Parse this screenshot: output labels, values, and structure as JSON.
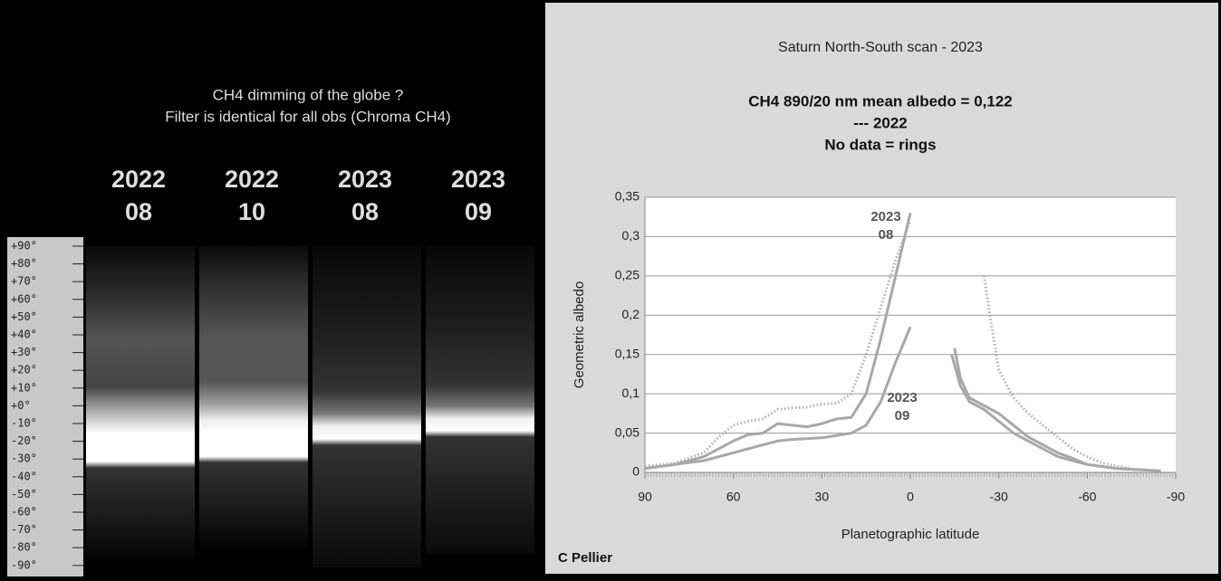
{
  "panel": {
    "title": [
      "CH4 dimming of the globe ?",
      "Filter is identical for all obs (Chroma CH4)"
    ],
    "columns": [
      [
        "2022",
        "08"
      ],
      [
        "2022",
        "10"
      ],
      [
        "2023",
        "08"
      ],
      [
        "2023",
        "09"
      ]
    ],
    "latitude_labels": [
      "+90°",
      "+80°",
      "+70°",
      "+60°",
      "+50°",
      "+40°",
      "+30°",
      "+20°",
      "+10°",
      "+0°",
      "-10°",
      "-20°",
      "-30°",
      "-40°",
      "-50°",
      "-60°",
      "-70°",
      "-80°",
      "-90°"
    ]
  },
  "chart_data": {
    "type": "line",
    "title": "Saturn North-South scan - 2023",
    "subtitle": [
      "CH4 890/20 nm mean albedo = 0,122",
      "--- 2022",
      "No data = rings"
    ],
    "x_label": "Planetographic latitude",
    "y_label": "Geometric albedo",
    "credit": "C Pellier",
    "xlim": [
      90,
      -90
    ],
    "xticks": [
      90,
      60,
      30,
      0,
      -30,
      -60,
      -90
    ],
    "ylim": [
      0,
      0.35
    ],
    "yticks": [
      0,
      {
        "value": 0.05,
        "label": "0,05"
      },
      {
        "value": 0.1,
        "label": "0,1"
      },
      {
        "value": 0.15,
        "label": "0,15"
      },
      {
        "value": 0.2,
        "label": "0,2"
      },
      {
        "value": 0.25,
        "label": "0,25"
      },
      {
        "value": 0.3,
        "label": "0,3"
      },
      {
        "value": 0.35,
        "label": "0,35"
      }
    ],
    "grid": true,
    "annotations": [
      [
        "2023",
        "08"
      ],
      [
        "2023",
        "09"
      ]
    ],
    "series": [
      {
        "color": "#b0b0b0",
        "style": "dotted",
        "x": [
          90,
          80,
          70,
          65,
          60,
          55,
          50,
          45,
          40,
          35,
          30,
          25,
          20,
          15,
          10,
          5,
          0,
          null,
          -25,
          -27,
          -30,
          -35,
          -40,
          -45,
          -50,
          -55,
          -60,
          -65,
          -70,
          -75
        ],
        "values": [
          0.008,
          0.012,
          0.025,
          0.045,
          0.06,
          0.065,
          0.068,
          0.08,
          0.082,
          0.083,
          0.087,
          0.088,
          0.1,
          0.15,
          0.21,
          0.27,
          0.32,
          null,
          0.25,
          0.2,
          0.13,
          0.095,
          0.075,
          0.06,
          0.045,
          0.03,
          0.02,
          0.012,
          0.008,
          0.005
        ]
      },
      {
        "color": "#a8a8a8",
        "style": "solid",
        "x": [
          90,
          80,
          70,
          65,
          60,
          55,
          50,
          45,
          40,
          35,
          30,
          25,
          20,
          15,
          10,
          5,
          0,
          null,
          -15,
          -17,
          -20,
          -25,
          -30,
          -35,
          -40,
          -45,
          -50,
          -55,
          -60,
          -70,
          -80,
          -85
        ],
        "values": [
          0.005,
          0.01,
          0.02,
          0.03,
          0.04,
          0.048,
          0.05,
          0.062,
          0.06,
          0.058,
          0.062,
          0.068,
          0.07,
          0.1,
          0.17,
          0.25,
          0.33,
          null,
          0.158,
          0.12,
          0.095,
          0.085,
          0.075,
          0.06,
          0.045,
          0.035,
          0.025,
          0.018,
          0.01,
          0.005,
          0.003,
          0.002
        ]
      },
      {
        "color": "#a8a8a8",
        "style": "solid",
        "x": [
          90,
          80,
          70,
          60,
          55,
          50,
          45,
          40,
          30,
          20,
          15,
          10,
          5,
          0,
          null,
          -14,
          -17,
          -20,
          -25,
          -30,
          -35,
          -40,
          -45,
          -50,
          -60,
          -70,
          -80
        ],
        "values": [
          0.005,
          0.01,
          0.015,
          0.025,
          0.03,
          0.035,
          0.04,
          0.042,
          0.044,
          0.05,
          0.06,
          0.09,
          0.14,
          0.185,
          null,
          0.15,
          0.11,
          0.09,
          0.08,
          0.065,
          0.05,
          0.04,
          0.03,
          0.02,
          0.01,
          0.005,
          0.003
        ]
      }
    ]
  }
}
